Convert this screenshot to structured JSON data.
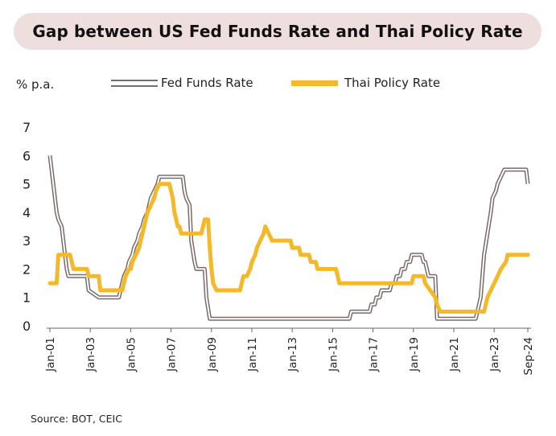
{
  "title": "Gap between US Fed Funds Rate and Thai Policy Rate",
  "unit_label": "% p.a.",
  "source": "Source: BOT, CEIC",
  "colors": {
    "fed": "#7a6b6b",
    "thai": "#f5b829",
    "title_bg": "#eedfde"
  },
  "chart_data": {
    "type": "line",
    "ylim": [
      0,
      7
    ],
    "y_ticks": [
      "0",
      "1",
      "2",
      "3",
      "4",
      "5",
      "6",
      "7"
    ],
    "x_ticks": [
      "Jan-01",
      "Jan-03",
      "Jan-05",
      "Jan-07",
      "Jan-09",
      "Jan-11",
      "Jan-13",
      "Jan-15",
      "Jan-17",
      "Jan-19",
      "Jan-21",
      "Jan-23",
      "Sep-24"
    ],
    "legend_position": "top",
    "grid": false,
    "series": [
      {
        "name": "Fed Funds Rate",
        "points": [
          [
            "2001-01",
            6.0
          ],
          [
            "2001-02",
            5.5
          ],
          [
            "2001-03",
            5.0
          ],
          [
            "2001-04",
            4.5
          ],
          [
            "2001-05",
            4.0
          ],
          [
            "2001-06",
            3.75
          ],
          [
            "2001-08",
            3.5
          ],
          [
            "2001-09",
            3.0
          ],
          [
            "2001-10",
            2.5
          ],
          [
            "2001-11",
            2.0
          ],
          [
            "2001-12",
            1.75
          ],
          [
            "2002-11",
            1.75
          ],
          [
            "2002-12",
            1.25
          ],
          [
            "2003-06",
            1.0
          ],
          [
            "2004-06",
            1.0
          ],
          [
            "2004-07",
            1.25
          ],
          [
            "2004-08",
            1.5
          ],
          [
            "2004-09",
            1.75
          ],
          [
            "2004-11",
            2.0
          ],
          [
            "2004-12",
            2.25
          ],
          [
            "2005-02",
            2.5
          ],
          [
            "2005-03",
            2.75
          ],
          [
            "2005-05",
            3.0
          ],
          [
            "2005-06",
            3.25
          ],
          [
            "2005-08",
            3.5
          ],
          [
            "2005-09",
            3.75
          ],
          [
            "2005-11",
            4.0
          ],
          [
            "2005-12",
            4.25
          ],
          [
            "2006-01",
            4.5
          ],
          [
            "2006-03",
            4.75
          ],
          [
            "2006-05",
            5.0
          ],
          [
            "2006-06",
            5.25
          ],
          [
            "2007-08",
            5.25
          ],
          [
            "2007-09",
            4.75
          ],
          [
            "2007-10",
            4.5
          ],
          [
            "2007-12",
            4.25
          ],
          [
            "2008-01",
            3.0
          ],
          [
            "2008-03",
            2.25
          ],
          [
            "2008-04",
            2.0
          ],
          [
            "2008-09",
            2.0
          ],
          [
            "2008-10",
            1.0
          ],
          [
            "2008-12",
            0.25
          ],
          [
            "2015-11",
            0.25
          ],
          [
            "2015-12",
            0.5
          ],
          [
            "2016-11",
            0.5
          ],
          [
            "2016-12",
            0.75
          ],
          [
            "2017-02",
            0.75
          ],
          [
            "2017-03",
            1.0
          ],
          [
            "2017-05",
            1.0
          ],
          [
            "2017-06",
            1.25
          ],
          [
            "2017-11",
            1.25
          ],
          [
            "2017-12",
            1.5
          ],
          [
            "2018-02",
            1.5
          ],
          [
            "2018-03",
            1.75
          ],
          [
            "2018-05",
            1.75
          ],
          [
            "2018-06",
            2.0
          ],
          [
            "2018-08",
            2.0
          ],
          [
            "2018-09",
            2.25
          ],
          [
            "2018-11",
            2.25
          ],
          [
            "2018-12",
            2.5
          ],
          [
            "2019-06",
            2.5
          ],
          [
            "2019-07",
            2.25
          ],
          [
            "2019-08",
            2.25
          ],
          [
            "2019-09",
            2.0
          ],
          [
            "2019-10",
            1.75
          ],
          [
            "2020-02",
            1.75
          ],
          [
            "2020-03",
            0.25
          ],
          [
            "2022-02",
            0.25
          ],
          [
            "2022-03",
            0.5
          ],
          [
            "2022-05",
            1.0
          ],
          [
            "2022-06",
            1.75
          ],
          [
            "2022-07",
            2.5
          ],
          [
            "2022-09",
            3.25
          ],
          [
            "2022-11",
            4.0
          ],
          [
            "2022-12",
            4.5
          ],
          [
            "2023-02",
            4.75
          ],
          [
            "2023-03",
            5.0
          ],
          [
            "2023-05",
            5.25
          ],
          [
            "2023-07",
            5.5
          ],
          [
            "2024-08",
            5.5
          ],
          [
            "2024-09",
            5.0
          ]
        ]
      },
      {
        "name": "Thai Policy Rate",
        "points": [
          [
            "2001-01",
            1.5
          ],
          [
            "2001-05",
            1.5
          ],
          [
            "2001-06",
            2.5
          ],
          [
            "2002-01",
            2.5
          ],
          [
            "2002-02",
            2.25
          ],
          [
            "2002-03",
            2.0
          ],
          [
            "2002-11",
            2.0
          ],
          [
            "2002-12",
            1.75
          ],
          [
            "2003-06",
            1.75
          ],
          [
            "2003-07",
            1.25
          ],
          [
            "2004-08",
            1.25
          ],
          [
            "2004-09",
            1.5
          ],
          [
            "2004-10",
            1.75
          ],
          [
            "2004-12",
            2.0
          ],
          [
            "2005-01",
            2.0
          ],
          [
            "2005-02",
            2.25
          ],
          [
            "2005-04",
            2.5
          ],
          [
            "2005-06",
            2.75
          ],
          [
            "2005-07",
            3.0
          ],
          [
            "2005-09",
            3.5
          ],
          [
            "2005-10",
            3.75
          ],
          [
            "2005-11",
            4.0
          ],
          [
            "2006-01",
            4.25
          ],
          [
            "2006-03",
            4.5
          ],
          [
            "2006-04",
            4.75
          ],
          [
            "2006-06",
            5.0
          ],
          [
            "2006-12",
            5.0
          ],
          [
            "2007-01",
            4.75
          ],
          [
            "2007-02",
            4.5
          ],
          [
            "2007-03",
            4.0
          ],
          [
            "2007-05",
            3.5
          ],
          [
            "2007-06",
            3.5
          ],
          [
            "2007-07",
            3.25
          ],
          [
            "2008-07",
            3.25
          ],
          [
            "2008-08",
            3.5
          ],
          [
            "2008-09",
            3.75
          ],
          [
            "2008-11",
            3.75
          ],
          [
            "2008-12",
            2.75
          ],
          [
            "2009-01",
            2.0
          ],
          [
            "2009-02",
            1.5
          ],
          [
            "2009-04",
            1.25
          ],
          [
            "2010-06",
            1.25
          ],
          [
            "2010-07",
            1.5
          ],
          [
            "2010-08",
            1.75
          ],
          [
            "2010-10",
            1.75
          ],
          [
            "2010-12",
            2.0
          ],
          [
            "2011-01",
            2.25
          ],
          [
            "2011-03",
            2.5
          ],
          [
            "2011-04",
            2.75
          ],
          [
            "2011-06",
            3.0
          ],
          [
            "2011-08",
            3.25
          ],
          [
            "2011-09",
            3.5
          ],
          [
            "2011-11",
            3.25
          ],
          [
            "2012-01",
            3.0
          ],
          [
            "2012-12",
            3.0
          ],
          [
            "2013-01",
            2.75
          ],
          [
            "2013-05",
            2.75
          ],
          [
            "2013-06",
            2.5
          ],
          [
            "2013-11",
            2.5
          ],
          [
            "2013-12",
            2.25
          ],
          [
            "2014-03",
            2.25
          ],
          [
            "2014-04",
            2.0
          ],
          [
            "2015-03",
            2.0
          ],
          [
            "2015-04",
            1.75
          ],
          [
            "2015-05",
            1.5
          ],
          [
            "2018-12",
            1.5
          ],
          [
            "2019-01",
            1.75
          ],
          [
            "2019-07",
            1.75
          ],
          [
            "2019-08",
            1.5
          ],
          [
            "2019-11",
            1.25
          ],
          [
            "2020-02",
            1.0
          ],
          [
            "2020-03",
            0.75
          ],
          [
            "2020-05",
            0.5
          ],
          [
            "2022-07",
            0.5
          ],
          [
            "2022-08",
            0.75
          ],
          [
            "2022-09",
            1.0
          ],
          [
            "2022-11",
            1.25
          ],
          [
            "2023-01",
            1.5
          ],
          [
            "2023-03",
            1.75
          ],
          [
            "2023-05",
            2.0
          ],
          [
            "2023-08",
            2.25
          ],
          [
            "2023-09",
            2.5
          ],
          [
            "2024-09",
            2.5
          ]
        ]
      }
    ]
  }
}
